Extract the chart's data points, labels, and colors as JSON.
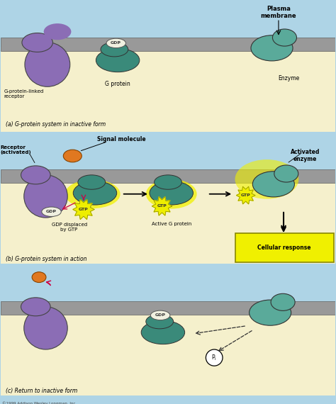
{
  "bg_light_blue": "#aed4e6",
  "bg_cream": "#f5f0cc",
  "membrane_gray": "#999999",
  "receptor_purple": "#8b6db5",
  "g_protein_teal": "#3a8a7a",
  "enzyme_teal": "#5aaa9a",
  "gdp_fill": "#efefdf",
  "gtp_fill": "#eeee00",
  "signal_orange": "#e07820",
  "arrow_color": "#111111",
  "cellular_response_fill": "#f0f000",
  "label_a": "(a) G-protein system in inactive form",
  "label_b": "(b) G-protein system in action",
  "label_c": "(c) Return to inactive form",
  "title_plasma": "Plasma\nmembrane",
  "copyright": "©1999 Addison Wesley Longman, Inc."
}
